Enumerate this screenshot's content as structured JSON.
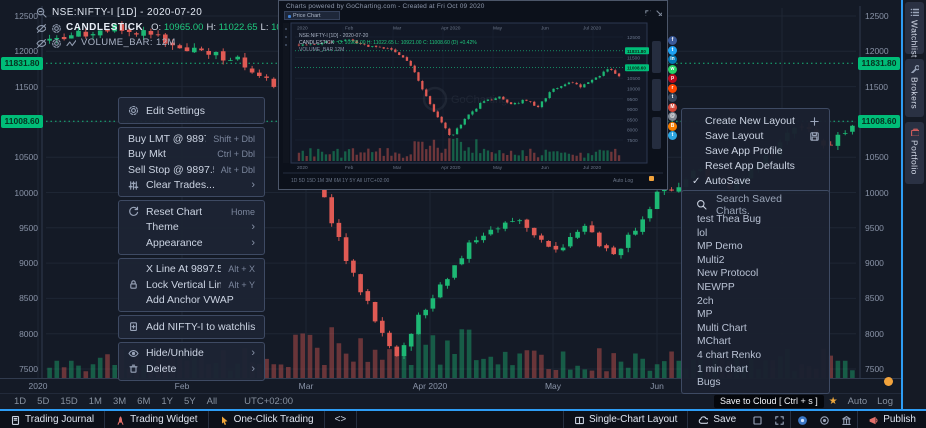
{
  "header": {
    "symbol": "NSE:NIFTY-I [1D] - 2020-07-20",
    "series": "CANDLESTICK",
    "ohlc": [
      {
        "label": "O:",
        "value": "10965.00"
      },
      {
        "label": "H:",
        "value": "11022.65"
      },
      {
        "label": "L:",
        "value": "10921.00"
      },
      {
        "label": "C:",
        "value": "11008.60"
      }
    ],
    "volume": "VOLUME_BAR: 12M"
  },
  "chart": {
    "y_ticks": [
      12500,
      12000,
      11500,
      10500,
      10000,
      9500,
      9000,
      8500,
      8000,
      7500
    ],
    "grid_levels": [
      12500,
      12000,
      11500,
      11000,
      10500,
      10000,
      9500,
      9000,
      8500,
      8000,
      7500
    ],
    "price_badges": [
      {
        "price": 11831.8,
        "label": "11831.80"
      },
      {
        "price": 11008.6,
        "label": "11008.60"
      }
    ],
    "x_ticks": [
      "2020",
      "Feb",
      "Mar",
      "Apr 2020",
      "May",
      "Jun"
    ],
    "up_color": "#1db874",
    "down_color": "#e05a54",
    "trend_anchors": [
      [
        45,
        12150
      ],
      [
        90,
        12280
      ],
      [
        125,
        12350
      ],
      [
        182,
        12040
      ],
      [
        240,
        11890
      ],
      [
        285,
        11350
      ],
      [
        315,
        10250
      ],
      [
        350,
        8900
      ],
      [
        395,
        7650
      ],
      [
        430,
        8500
      ],
      [
        470,
        9250
      ],
      [
        515,
        9600
      ],
      [
        553,
        9180
      ],
      [
        585,
        9500
      ],
      [
        615,
        9080
      ],
      [
        657,
        9950
      ],
      [
        700,
        10300
      ],
      [
        730,
        10050
      ],
      [
        762,
        10450
      ],
      [
        800,
        10950
      ],
      [
        828,
        10650
      ],
      [
        858,
        11010
      ]
    ]
  },
  "context_menu": {
    "sections": [
      {
        "items": [
          {
            "label": "Edit Settings"
          }
        ]
      },
      {
        "items": [
          {
            "label": "Buy LMT @ 9897.59",
            "shortcut": "Shift + Dbl"
          },
          {
            "label": "Buy Mkt",
            "shortcut": "Ctrl + Dbl"
          },
          {
            "label": "Sell Stop @ 9897.59",
            "shortcut": "Alt + Dbl"
          },
          {
            "label": "Clear Trades..."
          }
        ]
      },
      {
        "items": [
          {
            "label": "Reset Chart",
            "shortcut": "Home"
          },
          {
            "label": "Theme"
          },
          {
            "label": "Appearance"
          }
        ]
      },
      {
        "items": [
          {
            "label": "X Line At 9897.59",
            "shortcut": "Alt + X"
          },
          {
            "label": "Lock Vertical Line",
            "shortcut": "Alt + Y"
          },
          {
            "label": "Add Anchor VWAP"
          }
        ]
      },
      {
        "items": [
          {
            "label": "Add NIFTY-I to watchlist"
          }
        ]
      },
      {
        "items": [
          {
            "label": "Hide/Unhide"
          },
          {
            "label": "Delete"
          }
        ]
      }
    ]
  },
  "layout_menu": {
    "items": [
      {
        "label": "Create New Layout"
      },
      {
        "label": "Save Layout"
      },
      {
        "label": "Save App Profile"
      },
      {
        "label": "Reset App Defaults"
      },
      {
        "label": "AutoSave",
        "check": "✓"
      }
    ]
  },
  "saved_charts": {
    "search_placeholder": "Search Saved Charts.",
    "items": [
      "test Thea Bug",
      "lol",
      "MP Demo",
      "Multi2",
      "New Protocol",
      "NEWPP",
      "2ch",
      "MP",
      "Multi Chart",
      "MChart",
      "4 chart Renko",
      "1 min chart",
      "Bugs"
    ]
  },
  "popup": {
    "title": "Charts powered by GoCharting.com - Created at Fri Oct 09 2020",
    "tab": "Price Chart",
    "legend1": "NSE:NIFTY-I [1D] - 2020-07-20",
    "legend2_label": "CANDLESTICK",
    "legend2_values": "O: 10965.00 H: 11022.65 L: 10921.00 C: 11008.60 (D) +0.42%",
    "legend3": "VOLUME_BAR 12M",
    "watermark": "GoCharting",
    "x_ticks": [
      "2020",
      "Feb",
      "Mar",
      "Apr 2020",
      "May",
      "Jun",
      "Jul 2020"
    ],
    "y_ticks": [
      12500,
      11500,
      10500,
      10000,
      9500,
      9000,
      8500,
      8000,
      7500
    ],
    "price_badges": [
      {
        "price": 11831.8,
        "label": "11831.80"
      },
      {
        "price": 11008.6,
        "label": "11008.60"
      }
    ],
    "toolbar_left": "1D  5D  15D  1M  3M  6M  1Y  5Y  All        UTC+02:00",
    "toolbar_right": "Auto   Log",
    "share_icons": [
      {
        "name": "facebook",
        "glyph": "f",
        "color": "#3b5998"
      },
      {
        "name": "twitter",
        "glyph": "t",
        "color": "#1da1f2"
      },
      {
        "name": "linkedin",
        "glyph": "in",
        "color": "#0077b5"
      },
      {
        "name": "whatsapp",
        "glyph": "w",
        "color": "#25d366"
      },
      {
        "name": "pinterest",
        "glyph": "p",
        "color": "#bd081c"
      },
      {
        "name": "reddit",
        "glyph": "r",
        "color": "#ff4500"
      },
      {
        "name": "tumblr",
        "glyph": "t",
        "color": "#35465c"
      },
      {
        "name": "gmail",
        "glyph": "M",
        "color": "#d44638"
      },
      {
        "name": "email",
        "glyph": "@",
        "color": "#7d8591"
      },
      {
        "name": "blogger",
        "glyph": "B",
        "color": "#f57d00"
      },
      {
        "name": "telegram",
        "glyph": "t",
        "color": "#2ca5e0"
      }
    ]
  },
  "tooltip": {
    "text": "Save to Cloud [ Ctrl + s ]"
  },
  "timeframe_bar": {
    "items": [
      "1D",
      "5D",
      "15D",
      "1M",
      "3M",
      "6M",
      "1Y",
      "5Y",
      "All"
    ],
    "timezone": "UTC+02:00",
    "star": "★",
    "auto_label": "Auto",
    "log_label": "Log"
  },
  "status_bar": {
    "left": [
      {
        "label": "Trading Journal"
      },
      {
        "label": "Trading Widget"
      },
      {
        "label": "One-Click Trading"
      },
      {
        "label": "<>"
      }
    ],
    "right": {
      "layout_label": "Single-Chart Layout",
      "save_label": "Save",
      "publish_label": "Publish"
    }
  },
  "side_tabs": [
    {
      "label": "Watchlist"
    },
    {
      "label": "Brokers"
    },
    {
      "label": "Portfolio"
    }
  ]
}
